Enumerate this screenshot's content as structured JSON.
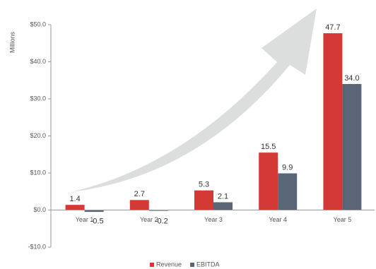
{
  "chart_data": {
    "type": "bar",
    "y_label": "Millions",
    "categories": [
      "Year 1",
      "Year 2",
      "Year 3",
      "Year 4",
      "Year 5"
    ],
    "series": [
      {
        "name": "Revenue",
        "color": "#d43a35",
        "values": [
          1.4,
          2.7,
          5.3,
          15.5,
          47.7
        ]
      },
      {
        "name": "EBITDA",
        "color": "#5a6577",
        "values": [
          -0.5,
          -0.2,
          2.1,
          9.9,
          34.0
        ],
        "value_labels": [
          "-0.5",
          "-0.2",
          "2.1",
          "9.9",
          "34.0"
        ]
      }
    ],
    "ylim": [
      -10,
      50
    ],
    "yticks": [
      {
        "value": -10,
        "label": "-$10.0"
      },
      {
        "value": 0,
        "label": "$0.0"
      },
      {
        "value": 10,
        "label": "$10.0"
      },
      {
        "value": 20,
        "label": "$20.0"
      },
      {
        "value": 30,
        "label": "$30.0"
      },
      {
        "value": 40,
        "label": "$40.0"
      },
      {
        "value": 50,
        "label": "$50.0"
      }
    ],
    "legend": "bottom"
  }
}
